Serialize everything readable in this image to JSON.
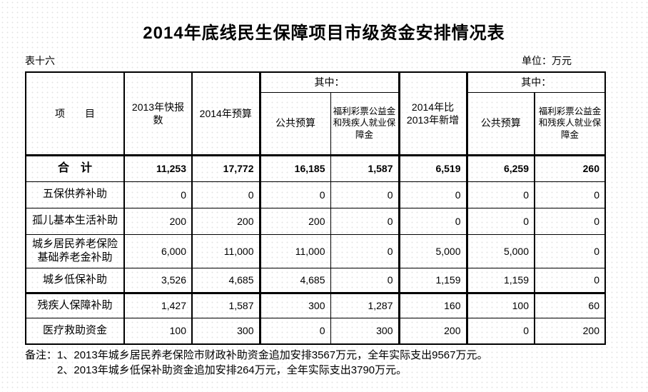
{
  "page": {
    "title": "2014年底线民生保障项目市级资金安排情况表",
    "table_number": "表十六",
    "unit": "单位：万元"
  },
  "table": {
    "header": {
      "item": "项　　目",
      "year2013_flash": "2013年快报数",
      "year2014_budget": "2014年预算",
      "among1": "其中：",
      "public_budget1": "公共预算",
      "welfare_fund1": "福利彩票公益金和残疾人就业保障金",
      "increase": "2014年比2013年新增",
      "among2": "其中：",
      "public_budget2": "公共预算",
      "welfare_fund2": "福利彩票公益金和残疾人就业保障金"
    },
    "rows": [
      {
        "label": "合　计",
        "bold": true,
        "values": [
          "11,253",
          "17,772",
          "16,185",
          "1,587",
          "6,519",
          "6,259",
          "260"
        ]
      },
      {
        "label": "五保供养补助",
        "values": [
          "0",
          "0",
          "0",
          "0",
          "0",
          "0",
          "0"
        ]
      },
      {
        "label": "孤儿基本生活补助",
        "values": [
          "200",
          "200",
          "200",
          "0",
          "0",
          "0",
          "0"
        ]
      },
      {
        "label": "城乡居民养老保险基础养老金补助",
        "values": [
          "6,000",
          "11,000",
          "11,000",
          "0",
          "5,000",
          "5,000",
          "0"
        ]
      },
      {
        "label": "城乡低保补助",
        "values": [
          "3,526",
          "4,685",
          "4,685",
          "0",
          "1,159",
          "1,159",
          "0"
        ]
      },
      {
        "label": "残疾人保障补助",
        "values": [
          "1,427",
          "1,587",
          "300",
          "1,287",
          "160",
          "100",
          "60"
        ]
      },
      {
        "label": "医疗救助资金",
        "values": [
          "100",
          "300",
          "0",
          "300",
          "200",
          "0",
          "200"
        ]
      }
    ]
  },
  "notes": {
    "prefix": "备注：",
    "items": [
      "1、2013年城乡居民养老保险市财政补助资金追加安排3567万元，全年实际支出9567万元。",
      "2、2013年城乡低保补助资金追加安排264万元，全年实际支出3790万元。"
    ]
  }
}
